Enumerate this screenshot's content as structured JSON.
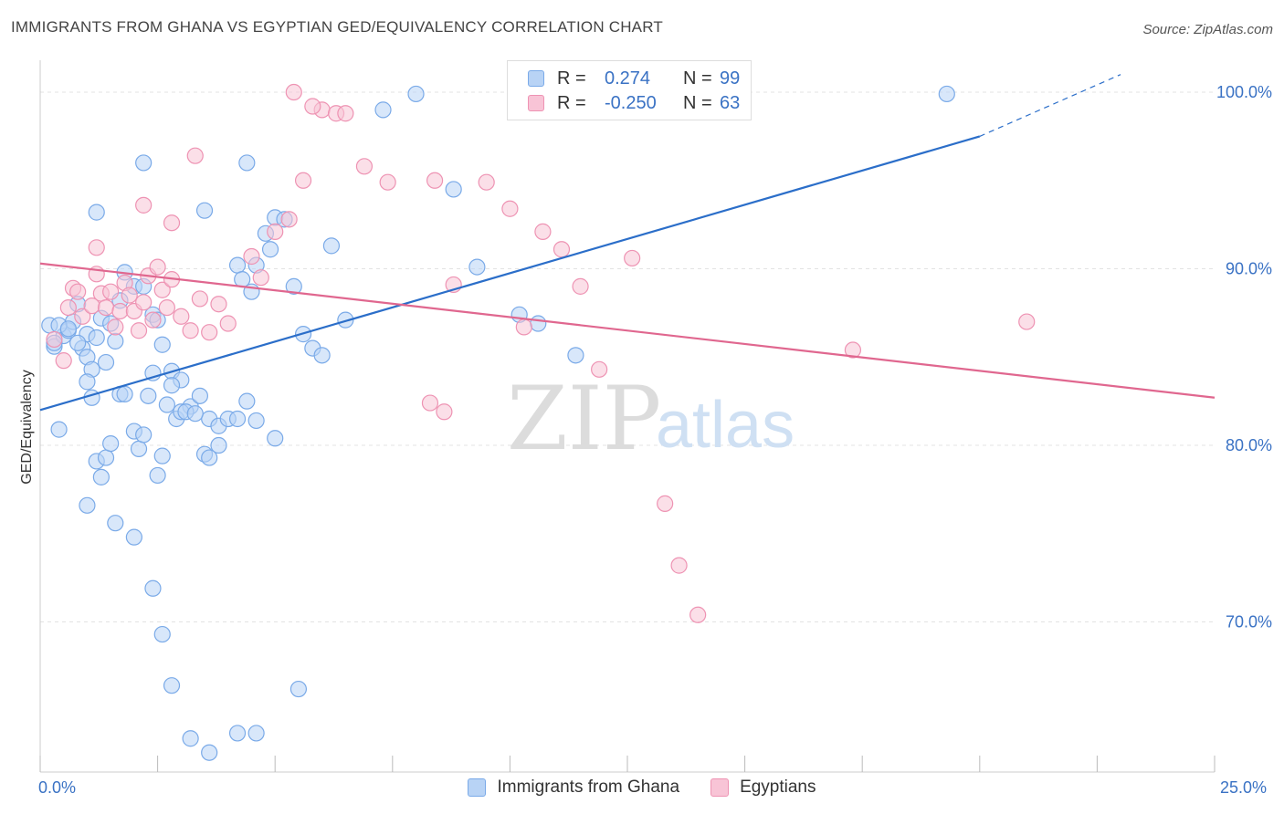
{
  "header": {
    "title": "IMMIGRANTS FROM GHANA VS EGYPTIAN GED/EQUIVALENCY CORRELATION CHART",
    "source": "Source: ZipAtlas.com"
  },
  "watermark": {
    "zip": "ZIP",
    "atlas": "atlas"
  },
  "legend_top": {
    "r_label": "R =",
    "n_label": "N =",
    "rows": [
      {
        "r": "0.274",
        "n": "99"
      },
      {
        "r": "-0.250",
        "n": "63"
      }
    ]
  },
  "colors": {
    "blue_fill": "#b8d3f5",
    "blue_stroke": "#7aaae8",
    "blue_line": "#2b6ec9",
    "pink_fill": "#f8c4d6",
    "pink_stroke": "#ee93b3",
    "pink_line": "#e0678f",
    "tick_text": "#3a72c4",
    "grid": "#e3e3e3"
  },
  "chart_data": {
    "type": "scatter",
    "title": "IMMIGRANTS FROM GHANA VS EGYPTIAN GED/EQUIVALENCY CORRELATION CHART",
    "xlabel": "",
    "ylabel": "GED/Equivalency",
    "xlim": [
      0,
      25
    ],
    "ylim": [
      61.5,
      101.5
    ],
    "x_ticks": [
      0,
      2.5,
      5,
      7.5,
      10,
      12.5,
      15,
      17.5,
      20,
      22.5,
      25
    ],
    "x_tick_labels": [
      {
        "value": 0,
        "label": "0.0%"
      },
      {
        "value": 25,
        "label": "25.0%"
      }
    ],
    "y_ticks": [
      {
        "value": 100,
        "label": "100.0%"
      },
      {
        "value": 90,
        "label": "90.0%"
      },
      {
        "value": 80,
        "label": "80.0%"
      },
      {
        "value": 70,
        "label": "70.0%"
      }
    ],
    "grid": true,
    "legend_position": "bottom",
    "series": [
      {
        "name": "Immigrants from Ghana",
        "color": "blue",
        "R": 0.274,
        "N": 99,
        "trend": {
          "x0": 0,
          "y0": 82.0,
          "x1": 20.0,
          "y1": 97.5,
          "dash_to_x": 23.0,
          "dash_to_y": 101.0
        },
        "points": [
          [
            0.2,
            86.8
          ],
          [
            0.3,
            85.6
          ],
          [
            0.5,
            86.2
          ],
          [
            0.6,
            86.5
          ],
          [
            0.7,
            87.0
          ],
          [
            0.8,
            88.0
          ],
          [
            0.9,
            85.5
          ],
          [
            1.0,
            85.0
          ],
          [
            1.0,
            86.3
          ],
          [
            1.1,
            84.3
          ],
          [
            1.2,
            86.1
          ],
          [
            1.3,
            87.2
          ],
          [
            1.4,
            84.7
          ],
          [
            1.5,
            86.9
          ],
          [
            1.6,
            85.9
          ],
          [
            1.7,
            88.2
          ],
          [
            1.8,
            89.8
          ],
          [
            2.0,
            89.0
          ],
          [
            2.2,
            89.0
          ],
          [
            2.4,
            87.4
          ],
          [
            2.5,
            87.1
          ],
          [
            2.6,
            85.7
          ],
          [
            2.8,
            84.2
          ],
          [
            3.0,
            83.7
          ],
          [
            3.2,
            82.2
          ],
          [
            3.4,
            82.8
          ],
          [
            3.6,
            81.5
          ],
          [
            3.8,
            81.1
          ],
          [
            4.0,
            81.5
          ],
          [
            4.2,
            90.2
          ],
          [
            4.3,
            89.4
          ],
          [
            4.5,
            88.7
          ],
          [
            4.6,
            90.2
          ],
          [
            4.8,
            92.0
          ],
          [
            4.9,
            91.1
          ],
          [
            5.0,
            92.9
          ],
          [
            5.2,
            92.8
          ],
          [
            5.4,
            89.0
          ],
          [
            5.6,
            86.3
          ],
          [
            5.8,
            85.5
          ],
          [
            6.0,
            85.1
          ],
          [
            6.2,
            91.3
          ],
          [
            6.5,
            87.1
          ],
          [
            0.3,
            85.8
          ],
          [
            0.4,
            86.8
          ],
          [
            0.6,
            86.6
          ],
          [
            0.8,
            85.8
          ],
          [
            1.0,
            83.6
          ],
          [
            1.1,
            82.7
          ],
          [
            1.2,
            79.1
          ],
          [
            1.3,
            78.2
          ],
          [
            1.4,
            79.3
          ],
          [
            1.5,
            80.1
          ],
          [
            1.7,
            82.9
          ],
          [
            1.8,
            82.9
          ],
          [
            2.0,
            80.8
          ],
          [
            2.1,
            79.8
          ],
          [
            2.2,
            80.6
          ],
          [
            2.3,
            82.8
          ],
          [
            2.4,
            84.1
          ],
          [
            2.5,
            78.3
          ],
          [
            2.6,
            79.4
          ],
          [
            2.7,
            82.3
          ],
          [
            2.8,
            83.4
          ],
          [
            2.9,
            81.5
          ],
          [
            3.0,
            81.9
          ],
          [
            3.1,
            81.9
          ],
          [
            3.3,
            81.8
          ],
          [
            3.5,
            79.5
          ],
          [
            3.6,
            79.3
          ],
          [
            3.8,
            80.0
          ],
          [
            4.2,
            81.5
          ],
          [
            4.4,
            82.5
          ],
          [
            4.6,
            81.4
          ],
          [
            5.0,
            80.4
          ],
          [
            0.4,
            80.9
          ],
          [
            1.0,
            76.6
          ],
          [
            1.6,
            75.6
          ],
          [
            2.0,
            74.8
          ],
          [
            2.4,
            71.9
          ],
          [
            2.6,
            69.3
          ],
          [
            2.8,
            66.4
          ],
          [
            3.2,
            63.4
          ],
          [
            3.6,
            62.6
          ],
          [
            4.2,
            63.7
          ],
          [
            4.6,
            63.7
          ],
          [
            5.5,
            66.2
          ],
          [
            2.2,
            96.0
          ],
          [
            3.5,
            93.3
          ],
          [
            4.4,
            96.0
          ],
          [
            1.2,
            93.2
          ],
          [
            7.3,
            99.0
          ],
          [
            8.0,
            99.9
          ],
          [
            8.8,
            94.5
          ],
          [
            9.3,
            90.1
          ],
          [
            10.2,
            87.4
          ],
          [
            10.6,
            86.9
          ],
          [
            11.4,
            85.1
          ],
          [
            19.3,
            99.9
          ]
        ]
      },
      {
        "name": "Egyptians",
        "color": "pink",
        "R": -0.25,
        "N": 63,
        "trend": {
          "x0": 0,
          "y0": 90.3,
          "x1": 25.0,
          "y1": 82.7
        },
        "points": [
          [
            0.3,
            86.0
          ],
          [
            0.5,
            84.8
          ],
          [
            0.6,
            87.8
          ],
          [
            0.7,
            88.9
          ],
          [
            0.8,
            88.7
          ],
          [
            0.9,
            87.3
          ],
          [
            1.1,
            87.9
          ],
          [
            1.2,
            89.7
          ],
          [
            1.3,
            88.6
          ],
          [
            1.4,
            87.8
          ],
          [
            1.5,
            88.7
          ],
          [
            1.6,
            86.7
          ],
          [
            1.7,
            87.6
          ],
          [
            1.8,
            89.2
          ],
          [
            1.9,
            88.5
          ],
          [
            2.0,
            87.6
          ],
          [
            2.1,
            86.5
          ],
          [
            2.2,
            88.1
          ],
          [
            2.3,
            89.6
          ],
          [
            2.4,
            87.1
          ],
          [
            2.5,
            90.1
          ],
          [
            2.6,
            88.8
          ],
          [
            2.7,
            87.8
          ],
          [
            2.8,
            89.4
          ],
          [
            3.0,
            87.3
          ],
          [
            3.2,
            86.5
          ],
          [
            3.4,
            88.3
          ],
          [
            3.6,
            86.4
          ],
          [
            3.8,
            88.0
          ],
          [
            4.0,
            86.9
          ],
          [
            4.5,
            90.7
          ],
          [
            4.7,
            89.5
          ],
          [
            5.0,
            92.1
          ],
          [
            5.3,
            92.8
          ],
          [
            5.6,
            95.0
          ],
          [
            6.0,
            99.0
          ],
          [
            5.8,
            99.2
          ],
          [
            5.4,
            100.0
          ],
          [
            6.3,
            98.8
          ],
          [
            6.5,
            98.8
          ],
          [
            6.9,
            95.8
          ],
          [
            7.4,
            94.9
          ],
          [
            8.4,
            95.0
          ],
          [
            8.8,
            89.1
          ],
          [
            9.5,
            94.9
          ],
          [
            10.0,
            93.4
          ],
          [
            10.7,
            92.1
          ],
          [
            11.1,
            91.1
          ],
          [
            11.5,
            89.0
          ],
          [
            12.6,
            90.6
          ],
          [
            2.2,
            93.6
          ],
          [
            2.8,
            92.6
          ],
          [
            3.3,
            96.4
          ],
          [
            1.2,
            91.2
          ],
          [
            8.3,
            82.4
          ],
          [
            8.6,
            81.9
          ],
          [
            10.3,
            86.7
          ],
          [
            11.9,
            84.3
          ],
          [
            13.3,
            76.7
          ],
          [
            13.6,
            73.2
          ],
          [
            14.0,
            70.4
          ],
          [
            17.3,
            85.4
          ],
          [
            21.0,
            87.0
          ]
        ]
      }
    ]
  },
  "legend_bottom": {
    "items": [
      {
        "label": "Immigrants from Ghana"
      },
      {
        "label": "Egyptians"
      }
    ]
  }
}
